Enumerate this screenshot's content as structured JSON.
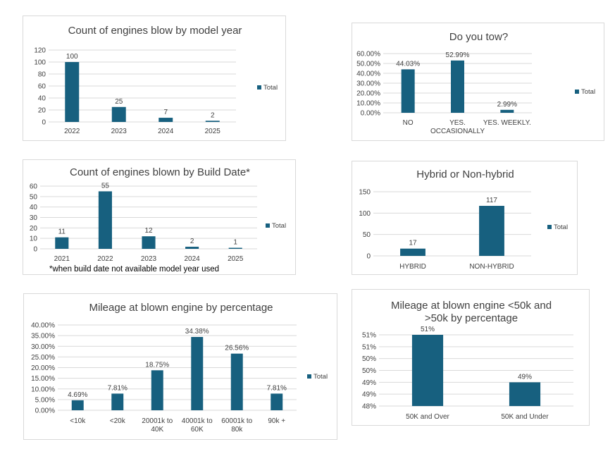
{
  "colors": {
    "bar": "#17607f",
    "grid": "#d9d9d9",
    "text": "#404040",
    "title": "#404040",
    "border": "#d9d9d9"
  },
  "chart_data": [
    {
      "id": "model_year",
      "type": "bar",
      "title": "Count of engines blow by model year",
      "categories": [
        "2022",
        "2023",
        "2024",
        "2025"
      ],
      "series": [
        {
          "name": "Total",
          "values": [
            100,
            25,
            7,
            2
          ]
        }
      ],
      "data_labels": [
        "100",
        "25",
        "7",
        "2"
      ],
      "yticks": [
        "0",
        "20",
        "40",
        "60",
        "80",
        "100",
        "120"
      ],
      "ylim": [
        0,
        120
      ],
      "grid": true,
      "legend": "right"
    },
    {
      "id": "tow",
      "type": "bar",
      "title": "Do you tow?",
      "categories": [
        "NO",
        "YES. OCCASIONALLY",
        "YES. WEEKLY."
      ],
      "category_lines": [
        [
          "NO"
        ],
        [
          "YES.",
          "OCCASIONALLY"
        ],
        [
          "YES. WEEKLY."
        ]
      ],
      "series": [
        {
          "name": "Total",
          "values": [
            44.03,
            52.99,
            2.99
          ]
        }
      ],
      "data_labels": [
        "44.03%",
        "52.99%",
        "2.99%"
      ],
      "yticks": [
        "0.00%",
        "10.00%",
        "20.00%",
        "30.00%",
        "40.00%",
        "50.00%",
        "60.00%"
      ],
      "ylim": [
        0,
        60
      ],
      "grid": true,
      "legend": "right"
    },
    {
      "id": "build_date",
      "type": "bar",
      "title": "Count of engines blown by Build Date*",
      "categories": [
        "2021",
        "2022",
        "2023",
        "2024",
        "2025"
      ],
      "series": [
        {
          "name": "Total",
          "values": [
            11,
            55,
            12,
            2,
            1
          ]
        }
      ],
      "data_labels": [
        "11",
        "55",
        "12",
        "2",
        "1"
      ],
      "yticks": [
        "0",
        "10",
        "20",
        "30",
        "40",
        "50",
        "60"
      ],
      "ylim": [
        0,
        60
      ],
      "grid": true,
      "legend": "right",
      "footnote": "*when build date not available model year used"
    },
    {
      "id": "hybrid",
      "type": "bar",
      "title": "Hybrid or Non-hybrid",
      "categories": [
        "HYBRID",
        "NON-HYBRID"
      ],
      "series": [
        {
          "name": "Total",
          "values": [
            17,
            117
          ]
        }
      ],
      "data_labels": [
        "17",
        "117"
      ],
      "yticks": [
        "0",
        "50",
        "100",
        "150"
      ],
      "ylim": [
        0,
        150
      ],
      "grid": true,
      "legend": "right"
    },
    {
      "id": "mileage",
      "type": "bar",
      "title": "Mileage at blown engine by percentage",
      "categories": [
        "<10k",
        "<20k",
        "20001k to 40K",
        "40001k to 60K",
        "60001k to 80k",
        "90k +"
      ],
      "category_lines": [
        [
          "<10k"
        ],
        [
          "<20k"
        ],
        [
          "20001k to",
          "40K"
        ],
        [
          "40001k to",
          "60K"
        ],
        [
          "60001k to",
          "80k"
        ],
        [
          "90k +"
        ]
      ],
      "series": [
        {
          "name": "Total",
          "values": [
            4.69,
            7.81,
            18.75,
            34.38,
            26.56,
            7.81
          ]
        }
      ],
      "data_labels": [
        "4.69%",
        "7.81%",
        "18.75%",
        "34.38%",
        "26.56%",
        "7.81%"
      ],
      "yticks": [
        "0.00%",
        "5.00%",
        "10.00%",
        "15.00%",
        "20.00%",
        "25.00%",
        "30.00%",
        "35.00%",
        "40.00%"
      ],
      "ylim": [
        0,
        40
      ],
      "grid": true,
      "legend": "right"
    },
    {
      "id": "mileage_50k",
      "type": "bar",
      "title": "Mileage at blown engine <50k and >50k by percentage",
      "title_lines": [
        "Mileage at blown engine <50k and",
        ">50k by percentage"
      ],
      "categories": [
        "50K and Over",
        "50K and Under"
      ],
      "series": [
        {
          "name": "",
          "values": [
            51,
            49
          ]
        }
      ],
      "data_labels": [
        "51%",
        "49%"
      ],
      "yticks": [
        "48%",
        "49%",
        "49%",
        "50%",
        "50%",
        "51%",
        "51%"
      ],
      "ylim": [
        48,
        51
      ],
      "grid": true,
      "legend": "none"
    }
  ]
}
